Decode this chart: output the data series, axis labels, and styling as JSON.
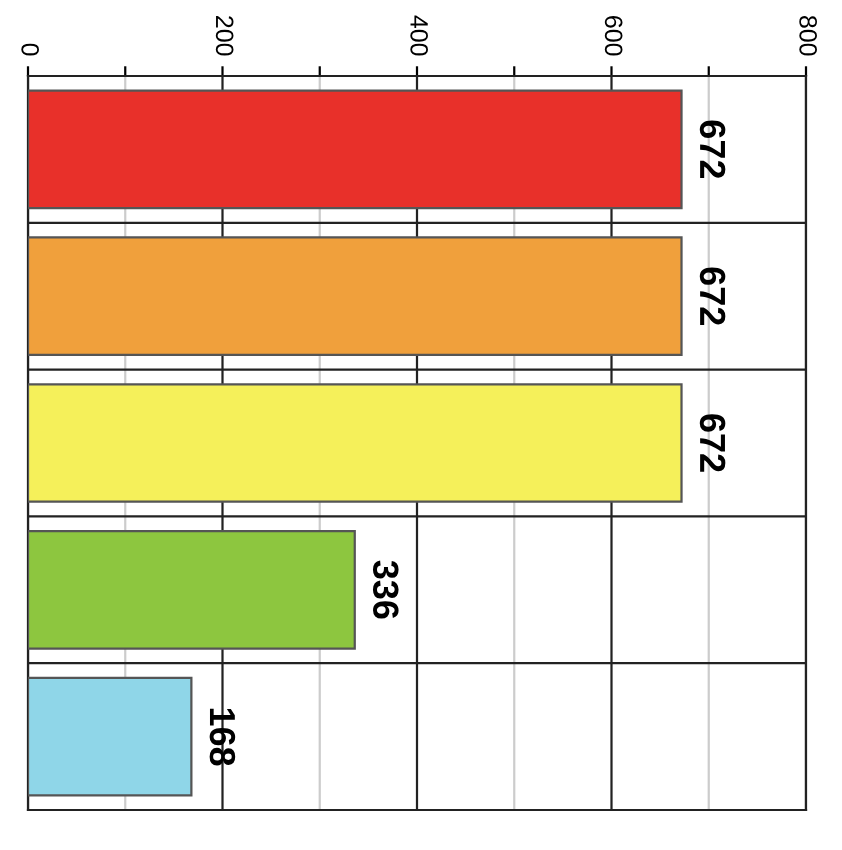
{
  "chart_data": {
    "type": "bar",
    "orientation": "horizontal",
    "categories": [
      null,
      null,
      null,
      null,
      null
    ],
    "values": [
      672,
      672,
      672,
      336,
      168
    ],
    "colors": [
      "#e8302a",
      "#f0a03c",
      "#f5f05a",
      "#8dc63f",
      "#8fd6e8"
    ],
    "xlim": [
      0,
      800
    ],
    "xticks": [
      0,
      {
        "value": 100,
        "label": null
      },
      200,
      {
        "value": 300,
        "label": null
      },
      400,
      {
        "value": 500,
        "label": null
      },
      600,
      {
        "value": 700,
        "label": null
      },
      800
    ],
    "grid": true,
    "data_labels": true
  }
}
